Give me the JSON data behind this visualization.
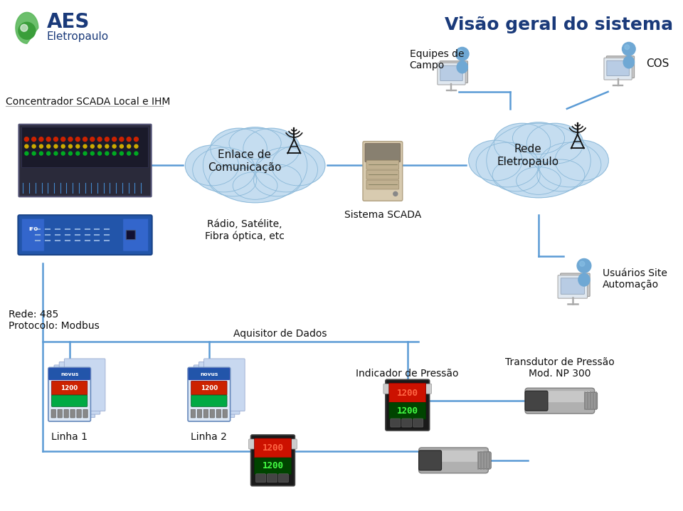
{
  "title": "Visão geral do sistema",
  "title_color": "#1a3a7a",
  "title_fontsize": 18,
  "bg_color": "#ffffff",
  "line_color": "#5b9bd5",
  "line_width": 1.8,
  "cloud_color": "#c5ddf0",
  "cloud_edge_color": "#8ab8d8",
  "text_color": "#111111",
  "label_fontsize": 10,
  "small_fontsize": 9,
  "components": {
    "concentrador_label": "Concentrador SCADA Local e IHM",
    "enlace_label": "Enlace de\nComunicação",
    "radio_label": "Rádio, Satélite,\nFibra óptica, etc",
    "scada_label": "Sistema SCADA",
    "rede_label": "Rede\nEletropaulo",
    "equipes_label": "Equipes de\nCampo",
    "cos_label": "COS",
    "usuarios_label": "Usuários Site\nAutomação",
    "rede485_label": "Rede: 485\nProtocolo: Modbus",
    "aquisitor_label": "Aquisitor de Dados",
    "linha1_label": "Linha 1",
    "linha2_label": "Linha 2",
    "indicador_label": "Indicador de Pressão",
    "transdutor_label": "Transdutor de Pressão\nMod. NP 300"
  },
  "logo": {
    "aes_color": "#1a3a7a",
    "eletropaulo_color": "#1a3a7a",
    "leaf1_color": "#5cb85c",
    "leaf2_color": "#3a9e3a"
  }
}
